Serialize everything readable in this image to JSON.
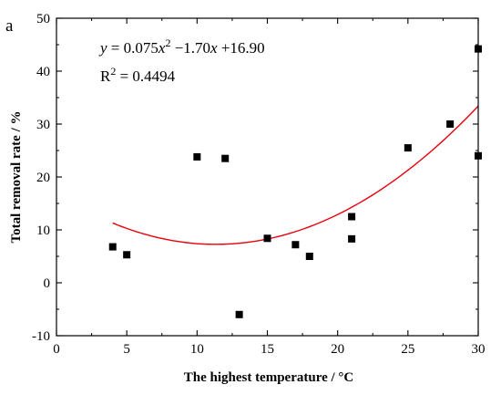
{
  "panel_label": "a",
  "chart_data": {
    "type": "scatter",
    "title": "",
    "xlabel": "The highest temperature / °C",
    "ylabel": "Total removal rate / %",
    "xlim": [
      0,
      30
    ],
    "ylim": [
      -10,
      50
    ],
    "xticks": [
      0,
      5,
      10,
      15,
      20,
      25,
      30
    ],
    "yticks": [
      -10,
      0,
      10,
      20,
      30,
      40,
      50
    ],
    "grid": false,
    "legend": "none",
    "points": [
      {
        "x": 4,
        "y": 6.8
      },
      {
        "x": 5,
        "y": 5.3
      },
      {
        "x": 10,
        "y": 23.8
      },
      {
        "x": 12,
        "y": 23.5
      },
      {
        "x": 13,
        "y": -6.0
      },
      {
        "x": 15,
        "y": 8.4
      },
      {
        "x": 17,
        "y": 7.2
      },
      {
        "x": 18,
        "y": 5.0
      },
      {
        "x": 21,
        "y": 12.5
      },
      {
        "x": 21,
        "y": 8.3
      },
      {
        "x": 25,
        "y": 25.5
      },
      {
        "x": 28,
        "y": 30.0
      },
      {
        "x": 30,
        "y": 44.2
      },
      {
        "x": 30,
        "y": 24.0
      }
    ],
    "fit": {
      "a": 0.075,
      "b": -1.7,
      "c": 16.9,
      "x_range": [
        4,
        30
      ],
      "color": "#e8000b"
    },
    "annotations": {
      "eq_y": "y",
      "eq_a": " = 0.075",
      "eq_x1": "x",
      "eq_exp": "2",
      "eq_mid": " −1.70",
      "eq_x2": "x",
      "eq_end": " +16.90",
      "r2_r": "R",
      "r2_exp": "2",
      "r2_value": " = 0.4494"
    },
    "marker_color": "#000000"
  }
}
